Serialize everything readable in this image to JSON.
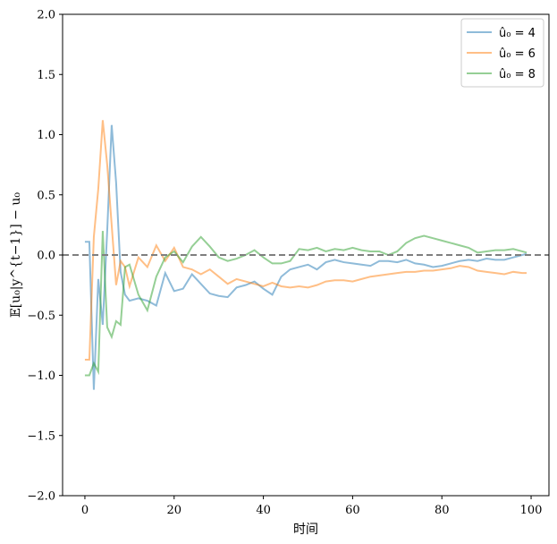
{
  "chart_data": {
    "type": "line",
    "title": "",
    "xlabel": "时间",
    "ylabel": "𝔼[u₀|y^{t−1}] − u₀",
    "xlim": [
      -5,
      104
    ],
    "ylim": [
      -2.0,
      2.0
    ],
    "xticks": [
      0,
      20,
      40,
      60,
      80,
      100
    ],
    "yticks": [
      -2.0,
      -1.5,
      -1.0,
      -0.5,
      0.0,
      0.5,
      1.0,
      1.5,
      2.0
    ],
    "ytick_labels": [
      "−2.0",
      "−1.5",
      "−1.0",
      "−0.5",
      "0.0",
      "0.5",
      "1.0",
      "1.5",
      "2.0"
    ],
    "xtick_labels": [
      "0",
      "20",
      "40",
      "60",
      "80",
      "100"
    ],
    "reference_line": {
      "y": 0.0,
      "style": "dashed",
      "color": "#7f7f7f"
    },
    "grid": false,
    "legend_position": "top-right",
    "series": [
      {
        "name": "û₀ = 4",
        "color": "#1f77b4",
        "x": [
          0,
          1,
          2,
          3,
          4,
          5,
          6,
          7,
          8,
          9,
          10,
          12,
          14,
          16,
          18,
          20,
          22,
          24,
          26,
          28,
          30,
          32,
          34,
          36,
          38,
          40,
          42,
          44,
          46,
          48,
          50,
          52,
          54,
          56,
          58,
          60,
          62,
          64,
          66,
          68,
          70,
          72,
          74,
          76,
          78,
          80,
          82,
          84,
          86,
          88,
          90,
          92,
          94,
          96,
          98,
          99
        ],
        "y": [
          0.11,
          0.11,
          -1.12,
          -0.2,
          -0.58,
          0.2,
          1.08,
          0.6,
          -0.14,
          -0.33,
          -0.38,
          -0.36,
          -0.38,
          -0.42,
          -0.15,
          -0.3,
          -0.28,
          -0.16,
          -0.24,
          -0.32,
          -0.34,
          -0.35,
          -0.27,
          -0.25,
          -0.22,
          -0.28,
          -0.33,
          -0.18,
          -0.12,
          -0.1,
          -0.08,
          -0.12,
          -0.06,
          -0.04,
          -0.06,
          -0.07,
          -0.08,
          -0.09,
          -0.05,
          -0.05,
          -0.06,
          -0.04,
          -0.07,
          -0.08,
          -0.1,
          -0.09,
          -0.07,
          -0.05,
          -0.04,
          -0.05,
          -0.03,
          -0.04,
          -0.04,
          -0.02,
          0.0,
          0.01
        ]
      },
      {
        "name": "û₀ = 6",
        "color": "#ff7f0e",
        "x": [
          0,
          1,
          2,
          3,
          4,
          5,
          6,
          7,
          8,
          9,
          10,
          12,
          14,
          16,
          18,
          20,
          22,
          24,
          26,
          28,
          30,
          32,
          34,
          36,
          38,
          40,
          42,
          44,
          46,
          48,
          50,
          52,
          54,
          56,
          58,
          60,
          62,
          64,
          66,
          68,
          70,
          72,
          74,
          76,
          78,
          80,
          82,
          84,
          86,
          88,
          90,
          92,
          94,
          96,
          98,
          99
        ],
        "y": [
          -0.87,
          -0.87,
          0.15,
          0.55,
          1.12,
          0.75,
          0.25,
          -0.25,
          -0.05,
          -0.1,
          -0.26,
          -0.02,
          -0.1,
          0.08,
          -0.05,
          0.06,
          -0.1,
          -0.12,
          -0.16,
          -0.12,
          -0.18,
          -0.24,
          -0.2,
          -0.22,
          -0.24,
          -0.26,
          -0.23,
          -0.26,
          -0.27,
          -0.26,
          -0.27,
          -0.25,
          -0.22,
          -0.21,
          -0.21,
          -0.22,
          -0.2,
          -0.18,
          -0.17,
          -0.16,
          -0.15,
          -0.14,
          -0.14,
          -0.13,
          -0.13,
          -0.12,
          -0.11,
          -0.09,
          -0.1,
          -0.13,
          -0.14,
          -0.15,
          -0.16,
          -0.14,
          -0.15,
          -0.15
        ]
      },
      {
        "name": "û₀ = 8",
        "color": "#2ca02c",
        "x": [
          0,
          1,
          2,
          3,
          4,
          5,
          6,
          7,
          8,
          9,
          10,
          12,
          14,
          16,
          18,
          20,
          22,
          24,
          26,
          28,
          30,
          32,
          34,
          36,
          38,
          40,
          42,
          44,
          46,
          48,
          50,
          52,
          54,
          56,
          58,
          60,
          62,
          64,
          66,
          68,
          70,
          72,
          74,
          76,
          78,
          80,
          82,
          84,
          86,
          88,
          90,
          92,
          94,
          96,
          98,
          99
        ],
        "y": [
          -1.0,
          -1.0,
          -0.9,
          -0.97,
          0.2,
          -0.6,
          -0.68,
          -0.55,
          -0.58,
          -0.1,
          -0.08,
          -0.33,
          -0.46,
          -0.18,
          -0.02,
          0.03,
          -0.06,
          0.07,
          0.15,
          0.07,
          -0.02,
          -0.05,
          -0.03,
          0.0,
          0.04,
          -0.02,
          -0.07,
          -0.07,
          -0.05,
          0.05,
          0.04,
          0.06,
          0.03,
          0.05,
          0.04,
          0.06,
          0.04,
          0.03,
          0.03,
          0.0,
          0.03,
          0.1,
          0.14,
          0.16,
          0.14,
          0.12,
          0.1,
          0.08,
          0.06,
          0.02,
          0.03,
          0.04,
          0.04,
          0.05,
          0.03,
          0.02
        ]
      }
    ]
  }
}
